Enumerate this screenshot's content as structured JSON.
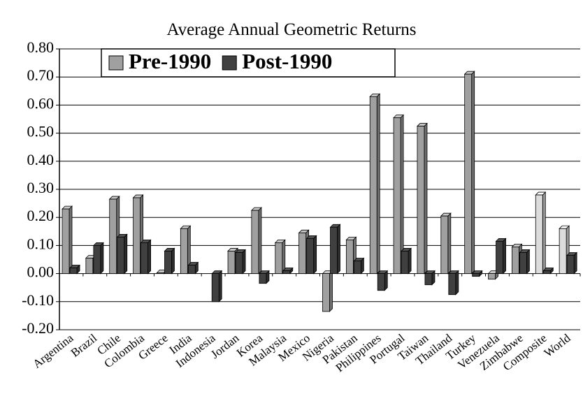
{
  "chart_data": {
    "type": "bar",
    "title": "Average Annual Geometric Returns",
    "categories": [
      "Argentina",
      "Brazil",
      "Chile",
      "Colombia",
      "Greece",
      "India",
      "Indonesia",
      "Jordan",
      "Korea",
      "Malaysia",
      "Mexico",
      "Nigeria",
      "Pakistan",
      "Philippines",
      "Portugal",
      "Taiwan",
      "Thailand",
      "Turkey",
      "Venezuela",
      "Zimbabwe",
      "Composite",
      "World"
    ],
    "series": [
      {
        "name": "Pre-1990",
        "color": "#a0a0a0",
        "point_colors": {
          "20": "#dcdcdc",
          "21": "#dcdcdc"
        },
        "values": [
          0.23,
          0.055,
          0.265,
          0.27,
          0.003,
          0.16,
          null,
          0.08,
          0.225,
          0.11,
          0.145,
          -0.135,
          0.12,
          0.63,
          0.555,
          0.525,
          0.205,
          0.71,
          -0.02,
          0.095,
          0.28,
          0.16
        ]
      },
      {
        "name": "Post-1990",
        "color": "#404040",
        "values": [
          0.02,
          0.1,
          0.13,
          0.11,
          0.08,
          0.03,
          -0.1,
          0.075,
          -0.035,
          0.01,
          0.125,
          0.165,
          0.045,
          -0.06,
          0.08,
          -0.04,
          -0.075,
          -0.01,
          0.115,
          0.075,
          0.01,
          0.065
        ]
      }
    ],
    "ylim": [
      -0.2,
      0.8
    ],
    "yticks": [
      {
        "value": 0.8,
        "label": "0.80"
      },
      {
        "value": 0.7,
        "label": "0.70"
      },
      {
        "value": 0.6,
        "label": "0.60"
      },
      {
        "value": 0.5,
        "label": "0.50"
      },
      {
        "value": 0.4,
        "label": "0.40"
      },
      {
        "value": 0.3,
        "label": "0.30"
      },
      {
        "value": 0.2,
        "label": "0.20"
      },
      {
        "value": 0.1,
        "label": "0.10"
      },
      {
        "value": 0,
        "label": "0.00"
      },
      {
        "value": -0.1,
        "label": "-0.10"
      },
      {
        "value": -0.2,
        "label": "-0.20"
      }
    ],
    "grid": true,
    "legend": "top-left"
  }
}
